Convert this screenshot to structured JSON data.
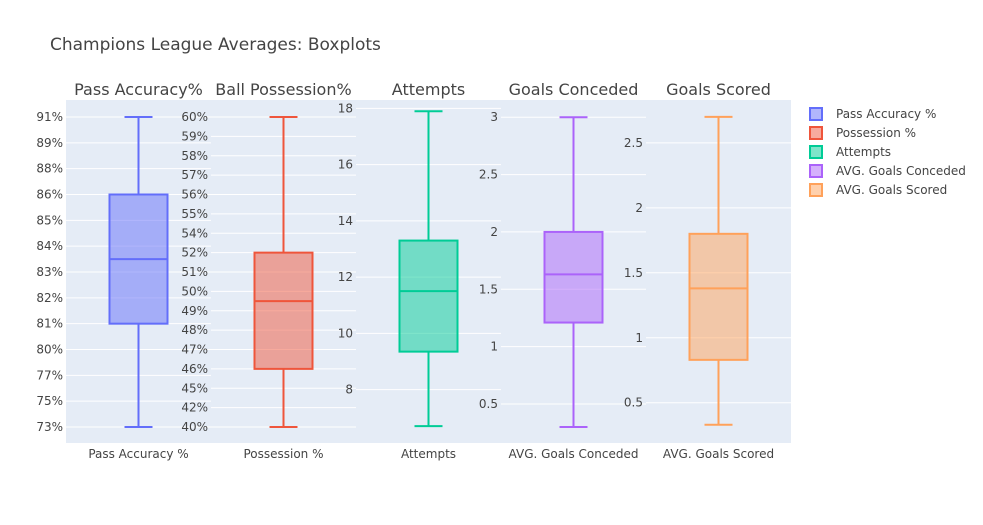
{
  "title": "Champions League Averages: Boxplots",
  "chart_data": [
    {
      "type": "box",
      "subplot_title": "Pass Accuracy%",
      "category": "Pass Accuracy %",
      "color": "#636efa",
      "yticks": [
        {
          "value": 73,
          "label": "73%"
        },
        {
          "value": 75,
          "label": "75%"
        },
        {
          "value": 77,
          "label": "77%"
        },
        {
          "value": 80,
          "label": "80%"
        },
        {
          "value": 81,
          "label": "81%"
        },
        {
          "value": 82,
          "label": "82%"
        },
        {
          "value": 83,
          "label": "83%"
        },
        {
          "value": 84,
          "label": "84%"
        },
        {
          "value": 85,
          "label": "85%"
        },
        {
          "value": 86,
          "label": "86%"
        },
        {
          "value": 88,
          "label": "88%"
        },
        {
          "value": 89,
          "label": "89%"
        },
        {
          "value": 91,
          "label": "91%"
        }
      ],
      "categorical_axis": true,
      "stats": {
        "min": 73,
        "q1": 81,
        "median": 83.5,
        "q3": 86,
        "max": 91
      }
    },
    {
      "type": "box",
      "subplot_title": "Ball Possession%",
      "category": "Possession %",
      "color": "#ef553b",
      "yticks": [
        {
          "value": 40,
          "label": "40%"
        },
        {
          "value": 42,
          "label": "42%"
        },
        {
          "value": 45,
          "label": "45%"
        },
        {
          "value": 46,
          "label": "46%"
        },
        {
          "value": 47,
          "label": "47%"
        },
        {
          "value": 48,
          "label": "48%"
        },
        {
          "value": 49,
          "label": "49%"
        },
        {
          "value": 50,
          "label": "50%"
        },
        {
          "value": 51,
          "label": "51%"
        },
        {
          "value": 52,
          "label": "52%"
        },
        {
          "value": 54,
          "label": "54%"
        },
        {
          "value": 55,
          "label": "55%"
        },
        {
          "value": 56,
          "label": "56%"
        },
        {
          "value": 57,
          "label": "57%"
        },
        {
          "value": 58,
          "label": "58%"
        },
        {
          "value": 59,
          "label": "59%"
        },
        {
          "value": 60,
          "label": "60%"
        }
      ],
      "categorical_axis": true,
      "stats": {
        "min": 40,
        "q1": 46,
        "median": 49.5,
        "q3": 52,
        "max": 60
      }
    },
    {
      "type": "box",
      "subplot_title": "Attempts",
      "category": "Attempts",
      "color": "#00cc96",
      "yticks": [
        {
          "value": 8,
          "label": "8"
        },
        {
          "value": 10,
          "label": "10"
        },
        {
          "value": 12,
          "label": "12"
        },
        {
          "value": 14,
          "label": "14"
        },
        {
          "value": 16,
          "label": "16"
        },
        {
          "value": 18,
          "label": "18"
        }
      ],
      "categorical_axis": false,
      "ylim": [
        6.1,
        18.3
      ],
      "stats": {
        "min": 6.7,
        "q1": 9.35,
        "median": 11.5,
        "q3": 13.3,
        "max": 17.9
      }
    },
    {
      "type": "box",
      "subplot_title": "Goals Conceded",
      "category": "AVG. Goals Conceded",
      "color": "#ab63fa",
      "yticks": [
        {
          "value": 0.5,
          "label": "0.5"
        },
        {
          "value": 1,
          "label": "1"
        },
        {
          "value": 1.5,
          "label": "1.5"
        },
        {
          "value": 2,
          "label": "2"
        },
        {
          "value": 2.5,
          "label": "2.5"
        },
        {
          "value": 3,
          "label": "3"
        }
      ],
      "categorical_axis": false,
      "ylim": [
        0.16,
        3.15
      ],
      "stats": {
        "min": 0.3,
        "q1": 1.21,
        "median": 1.63,
        "q3": 2.0,
        "max": 3.0
      }
    },
    {
      "type": "box",
      "subplot_title": "Goals Scored",
      "category": "AVG. Goals Scored",
      "color": "#ffa15a",
      "yticks": [
        {
          "value": 0.5,
          "label": "0.5"
        },
        {
          "value": 1,
          "label": "1"
        },
        {
          "value": 1.5,
          "label": "1.5"
        },
        {
          "value": 2,
          "label": "2"
        },
        {
          "value": 2.5,
          "label": "2.5"
        }
      ],
      "categorical_axis": false,
      "ylim": [
        0.19,
        2.83
      ],
      "stats": {
        "min": 0.33,
        "q1": 0.83,
        "median": 1.38,
        "q3": 1.8,
        "max": 2.7
      }
    }
  ],
  "legend": {
    "placement": "top-right",
    "entries": [
      {
        "name": "Pass Accuracy %",
        "color": "#636efa"
      },
      {
        "name": "Possession %",
        "color": "#ef553b"
      },
      {
        "name": "Attempts",
        "color": "#00cc96"
      },
      {
        "name": "AVG. Goals Conceded",
        "color": "#ab63fa"
      },
      {
        "name": "AVG. Goals Scored",
        "color": "#ffa15a"
      }
    ]
  },
  "colors": {
    "plot_bg": "#e5ecf6",
    "grid": "#ffffff",
    "text": "#444444"
  }
}
